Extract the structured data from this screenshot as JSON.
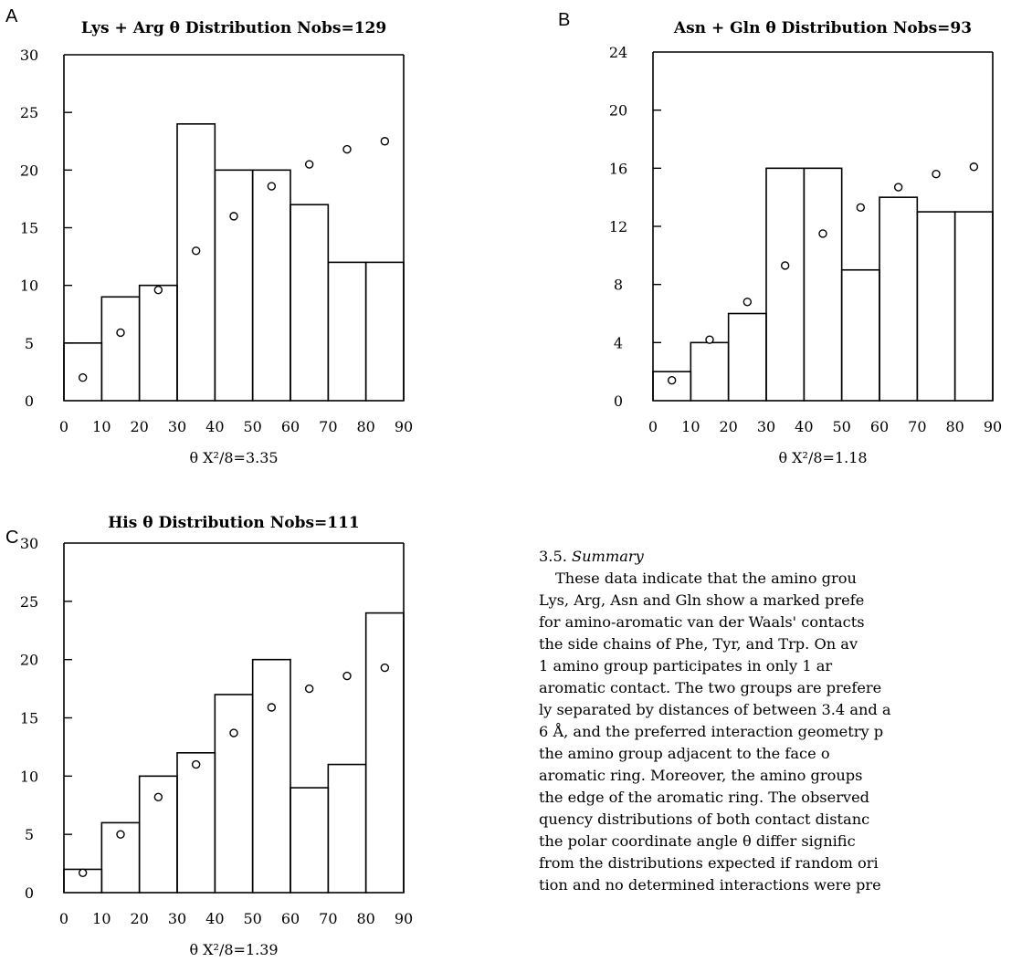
{
  "chart_data": [
    {
      "type": "bar",
      "panel": "A",
      "title": "Lys + Arg θ Distribution Nobs=129",
      "xlabel": "θ  X²/8=3.35",
      "x_ticks": [
        0,
        10,
        20,
        30,
        40,
        50,
        60,
        70,
        80,
        90
      ],
      "y_ticks": [
        0,
        5,
        10,
        15,
        20,
        25,
        30
      ],
      "ylim": [
        0,
        30
      ],
      "xlim": [
        0,
        90
      ],
      "bins": [
        [
          0,
          10
        ],
        [
          10,
          20
        ],
        [
          20,
          30
        ],
        [
          30,
          40
        ],
        [
          40,
          50
        ],
        [
          50,
          60
        ],
        [
          60,
          70
        ],
        [
          70,
          80
        ],
        [
          80,
          90
        ]
      ],
      "observed": [
        5,
        9,
        10,
        24,
        20,
        20,
        17,
        12,
        12
      ],
      "expected": [
        2.0,
        5.9,
        9.6,
        13.0,
        16.0,
        18.6,
        20.5,
        21.8,
        22.5
      ]
    },
    {
      "type": "bar",
      "panel": "B",
      "title": "Asn + Gln θ Distribution Nobs=93",
      "xlabel": "θ  X²/8=1.18",
      "x_ticks": [
        0,
        10,
        20,
        30,
        40,
        50,
        60,
        70,
        80,
        90
      ],
      "y_ticks": [
        0,
        4,
        8,
        12,
        16,
        20,
        24
      ],
      "ylim": [
        0,
        24
      ],
      "xlim": [
        0,
        90
      ],
      "bins": [
        [
          0,
          10
        ],
        [
          10,
          20
        ],
        [
          20,
          30
        ],
        [
          30,
          40
        ],
        [
          40,
          50
        ],
        [
          50,
          60
        ],
        [
          60,
          70
        ],
        [
          70,
          80
        ],
        [
          80,
          90
        ]
      ],
      "observed": [
        2,
        4,
        6,
        16,
        16,
        9,
        14,
        13,
        13
      ],
      "expected": [
        1.4,
        4.2,
        6.8,
        9.3,
        11.5,
        13.3,
        14.7,
        15.6,
        16.1
      ]
    },
    {
      "type": "bar",
      "panel": "C",
      "title": "His θ Distribution Nobs=111",
      "xlabel": "θ  X²/8=1.39",
      "x_ticks": [
        0,
        10,
        20,
        30,
        40,
        50,
        60,
        70,
        80,
        90
      ],
      "y_ticks": [
        0,
        5,
        10,
        15,
        20,
        25,
        30
      ],
      "ylim": [
        0,
        30
      ],
      "xlim": [
        0,
        90
      ],
      "bins": [
        [
          0,
          10
        ],
        [
          10,
          20
        ],
        [
          20,
          30
        ],
        [
          30,
          40
        ],
        [
          40,
          50
        ],
        [
          50,
          60
        ],
        [
          60,
          70
        ],
        [
          70,
          80
        ],
        [
          80,
          90
        ]
      ],
      "observed": [
        2,
        6,
        10,
        12,
        17,
        20,
        9,
        11,
        24
      ],
      "expected": [
        1.7,
        5.0,
        8.2,
        11.0,
        13.7,
        15.9,
        17.5,
        18.6,
        19.3
      ]
    }
  ],
  "summary": {
    "heading_number": "3.5.",
    "heading_title": "Summary",
    "lines": [
      "These data indicate that the amino grou",
      "Lys, Arg, Asn and Gln show a marked prefe",
      "for amino-aromatic van der Waals' contacts",
      "the side chains of Phe, Tyr, and Trp. On av",
      "1 amino group participates in only 1 ar",
      "aromatic contact. The two groups are prefere",
      "ly separated by distances of between 3.4 and a",
      "6 Å, and the preferred interaction geometry p",
      "the amino group adjacent to the face o",
      "aromatic ring. Moreover, the amino groups",
      "the edge of the aromatic ring. The observed",
      "quency distributions of both contact distanc",
      "the polar coordinate angle θ differ signific",
      "from the distributions expected if random ori",
      "tion and no determined interactions were pre"
    ]
  }
}
